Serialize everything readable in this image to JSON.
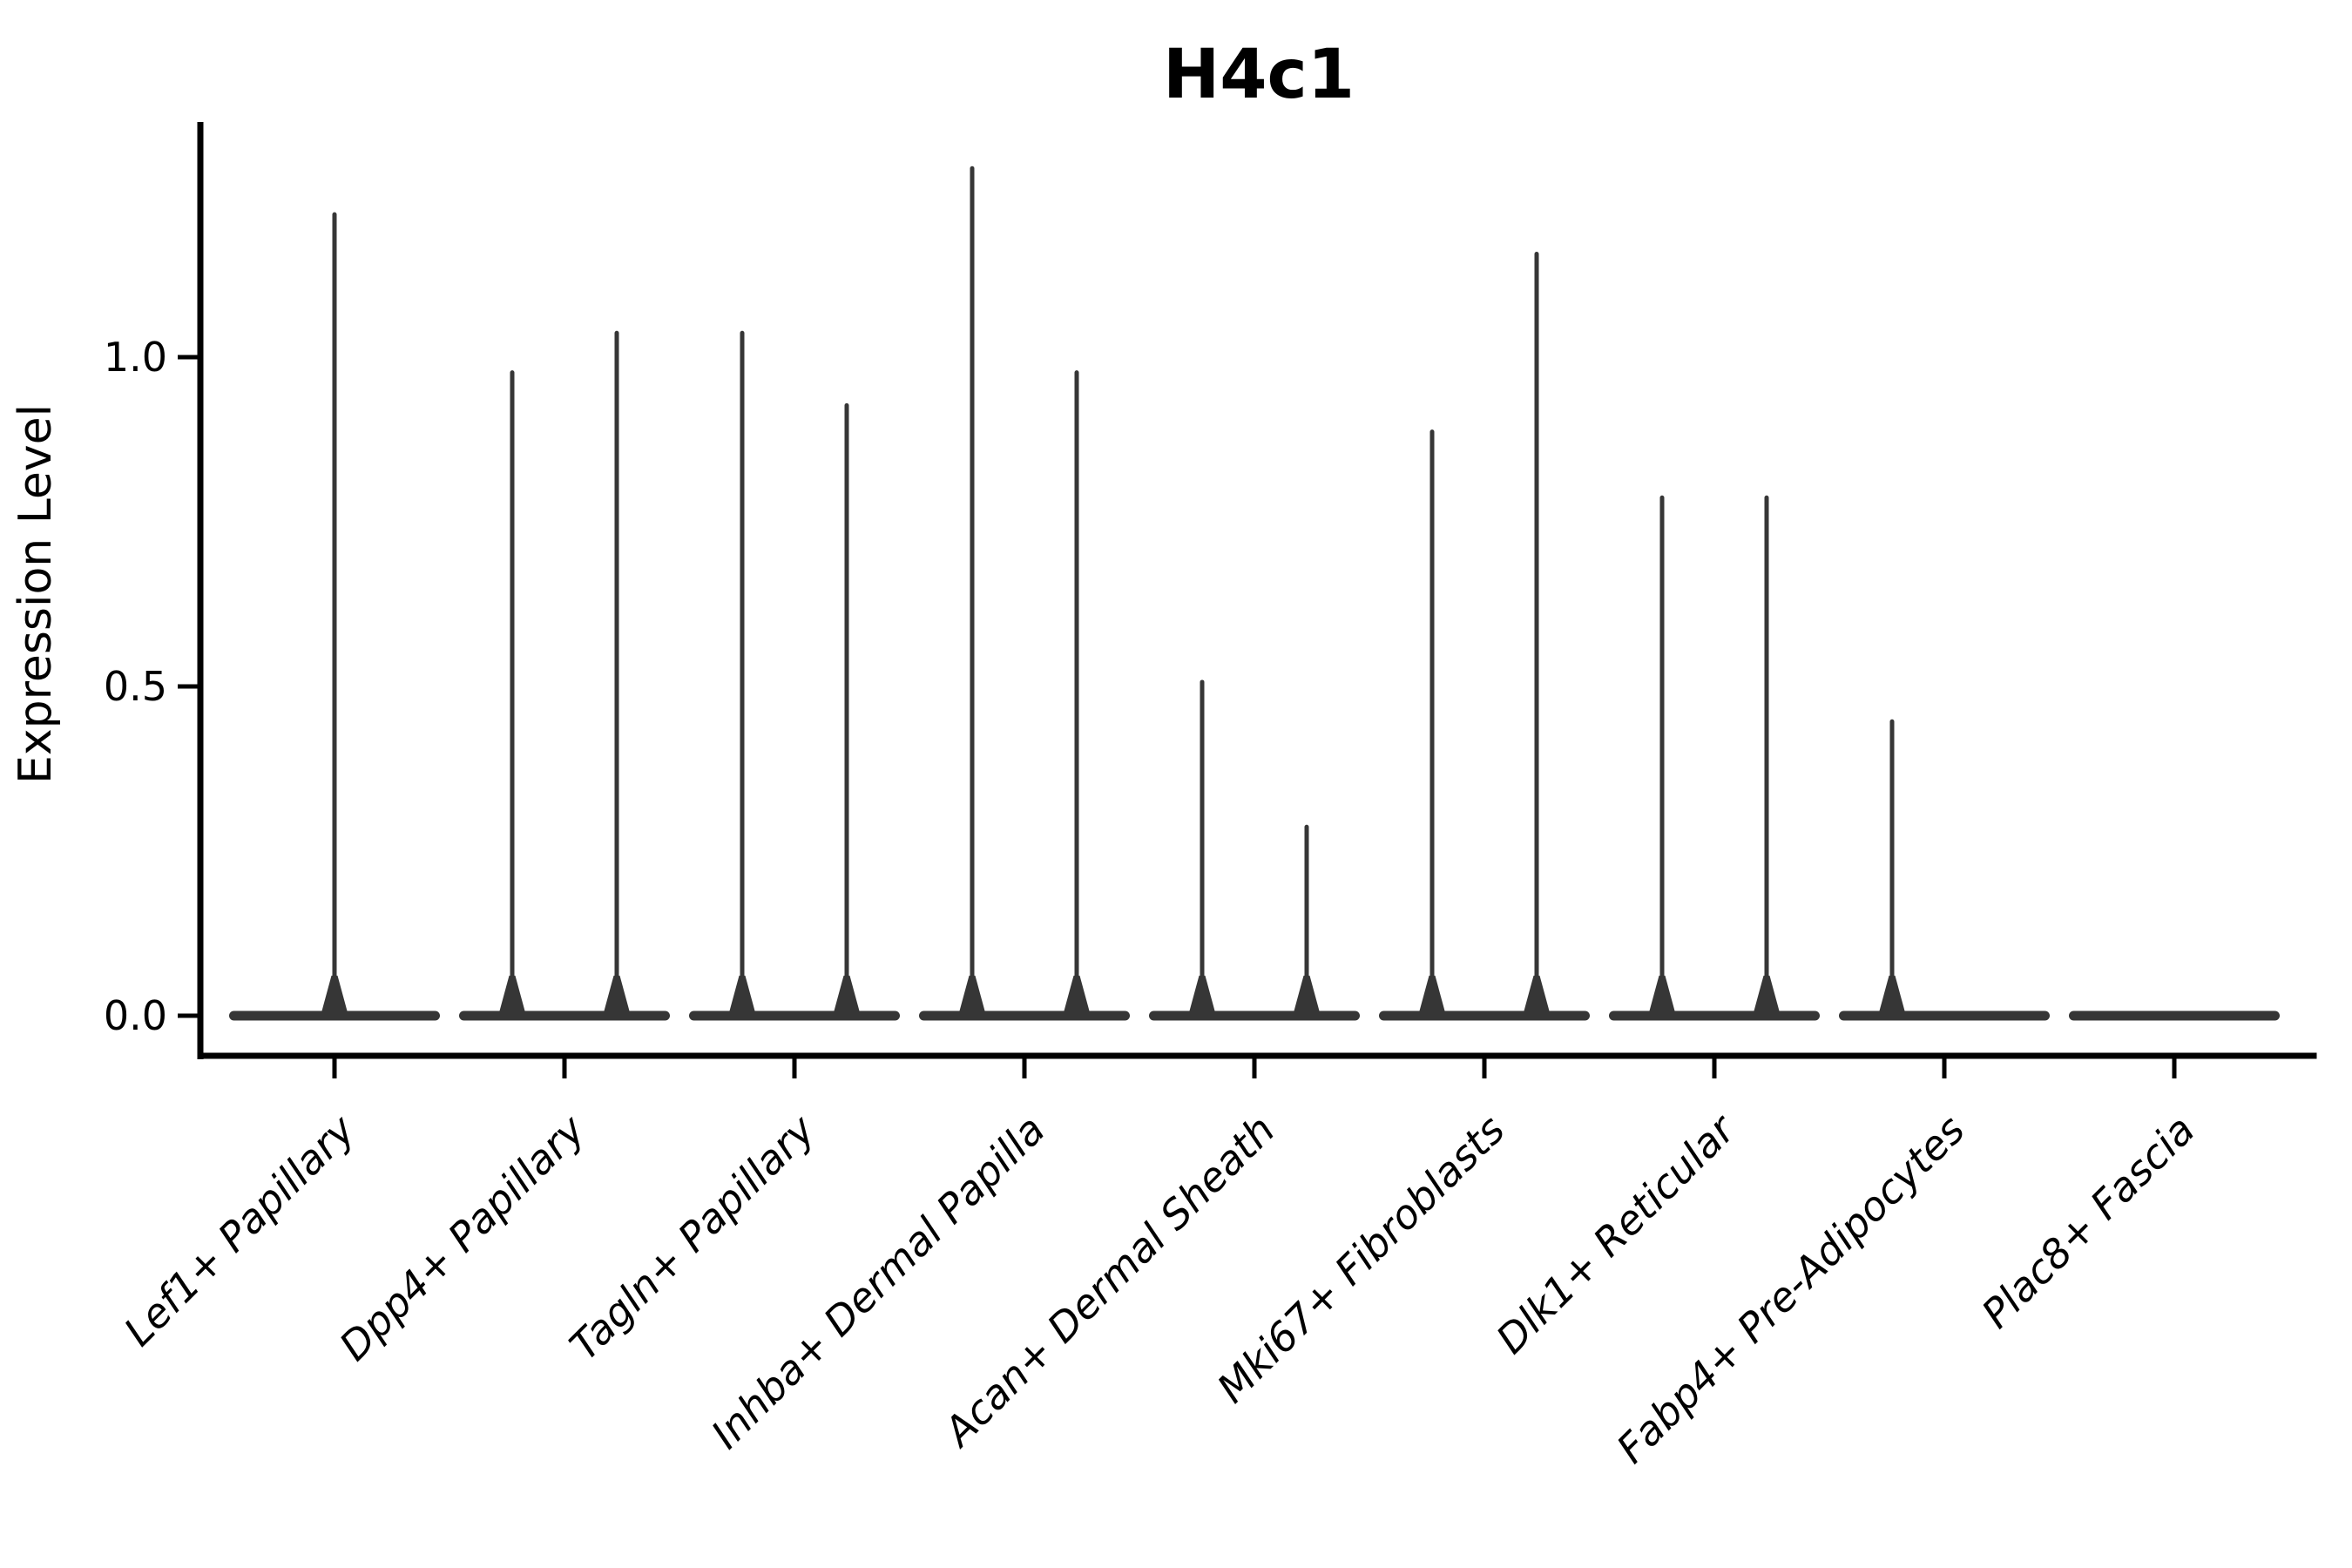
{
  "title": "H4c1",
  "ylabel": "Expression Level",
  "chart_data": {
    "type": "violin",
    "title": "H4c1",
    "xlabel": "",
    "ylabel": "Expression Level",
    "grid": false,
    "legend": "none",
    "x_tick_rotation": 45,
    "ylim": [
      -0.06,
      1.36
    ],
    "yticks": [
      {
        "label": "0.0",
        "value": 0.0
      },
      {
        "label": "0.5",
        "value": 0.5
      },
      {
        "label": "1.0",
        "value": 1.0
      }
    ],
    "violin_color": "#363636",
    "axis_color": "#000000",
    "categories": [
      "Lef1+ Papillary",
      "Dpp4+ Papillary",
      "Tagln+ Papillary",
      "Inhba+ Dermal Papilla",
      "Acan+ Dermal Sheath",
      "Mki67+ Fibroblasts",
      "Dlk1+ Reticular",
      "Fabp4+ Pre-Adipocytes",
      "Plac8+ Fascia"
    ],
    "series": [
      {
        "category": "Lef1+ Papillary",
        "violins": [
          {
            "side": "full",
            "max": 1.22
          }
        ]
      },
      {
        "category": "Dpp4+ Papillary",
        "violins": [
          {
            "side": "left",
            "max": 0.98
          },
          {
            "side": "right",
            "max": 1.04
          }
        ]
      },
      {
        "category": "Tagln+ Papillary",
        "violins": [
          {
            "side": "left",
            "max": 1.04
          },
          {
            "side": "right",
            "max": 0.93
          }
        ]
      },
      {
        "category": "Inhba+ Dermal Papilla",
        "violins": [
          {
            "side": "left",
            "max": 1.29
          },
          {
            "side": "right",
            "max": 0.98
          }
        ]
      },
      {
        "category": "Acan+ Dermal Sheath",
        "violins": [
          {
            "side": "left",
            "max": 0.51
          },
          {
            "side": "right",
            "max": 0.29
          }
        ]
      },
      {
        "category": "Mki67+ Fibroblasts",
        "violins": [
          {
            "side": "left",
            "max": 0.89
          },
          {
            "side": "right",
            "max": 1.16
          }
        ]
      },
      {
        "category": "Dlk1+ Reticular",
        "violins": [
          {
            "side": "left",
            "max": 0.79
          },
          {
            "side": "right",
            "max": 0.79
          }
        ]
      },
      {
        "category": "Fabp4+ Pre-Adipocytes",
        "violins": [
          {
            "side": "left",
            "max": 0.45
          },
          {
            "side": "right",
            "max": 0.0
          }
        ]
      },
      {
        "category": "Plac8+ Fascia",
        "violins": [
          {
            "side": "left",
            "max": 0.0
          },
          {
            "side": "right",
            "max": 0.0
          }
        ]
      }
    ]
  }
}
